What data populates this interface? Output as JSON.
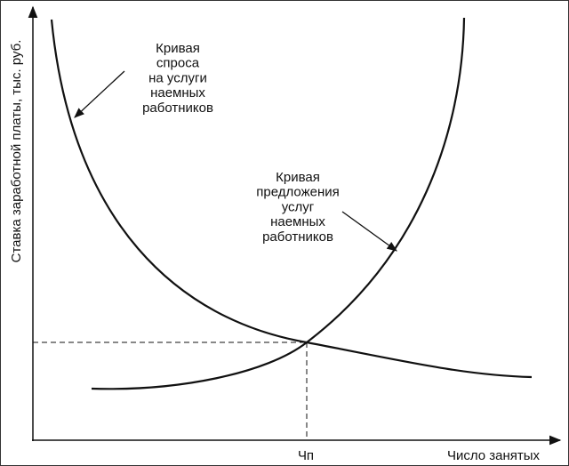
{
  "axes": {
    "y_label": "Ставка заработной платы, тыс. руб.",
    "x_label": "Число занятых"
  },
  "equilibrium_label": "Чп",
  "demand_curve": {
    "label": [
      "Кривая",
      "спроса",
      "на услуги",
      "наемных",
      "работников"
    ]
  },
  "supply_curve": {
    "label": [
      "Кривая",
      "предложения",
      "услуг",
      "наемных",
      "работников"
    ]
  }
}
